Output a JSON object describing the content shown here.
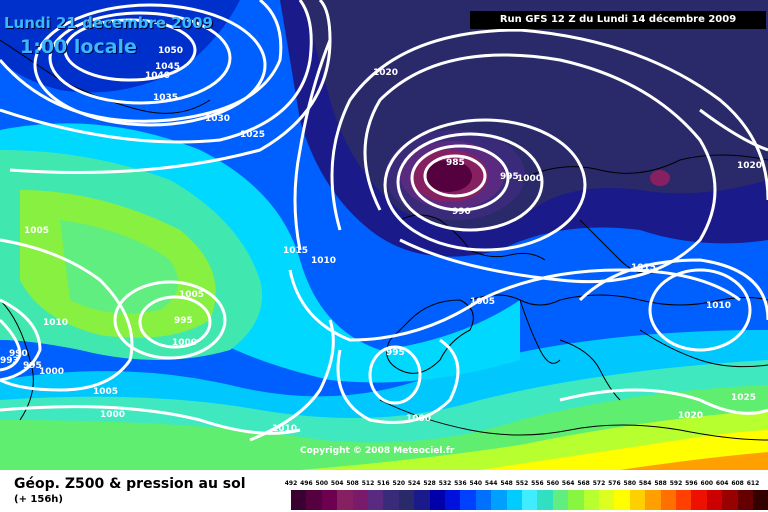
{
  "header": {
    "date": "Lundi 21 decembre 2009",
    "time": "1:00 locale",
    "run": "Run GFS 12 Z du Lundi 14 décembre 2009"
  },
  "copyright": "Copyright © 2008 Meteociel.fr",
  "footer": {
    "title": "Géop. Z500 & pression au sol",
    "subtitle": "(+ 156h)"
  },
  "legend": {
    "values": [
      "492",
      "496",
      "500",
      "504",
      "508",
      "512",
      "516",
      "520",
      "524",
      "528",
      "532",
      "536",
      "540",
      "544",
      "548",
      "552",
      "556",
      "560",
      "564",
      "568",
      "572",
      "576",
      "580",
      "584",
      "588",
      "592",
      "596",
      "600",
      "604",
      "608",
      "612"
    ],
    "colors": [
      "#3a0030",
      "#55003f",
      "#6e0050",
      "#872060",
      "#7a1a6a",
      "#5a2a80",
      "#3a2a7a",
      "#2a2a6a",
      "#1a1a8a",
      "#0000aa",
      "#0010dd",
      "#0040ff",
      "#0070ff",
      "#00a0ff",
      "#00ccff",
      "#40ecff",
      "#30e0c0",
      "#60ee80",
      "#88f540",
      "#b8ff30",
      "#ddff20",
      "#ffff00",
      "#ffd000",
      "#ffa000",
      "#ff7000",
      "#ff4000",
      "#ee1000",
      "#cc0000",
      "#990000",
      "#660000",
      "#330000"
    ]
  },
  "isobars": [
    "1050",
    "1045",
    "1040",
    "1035",
    "1030",
    "1025",
    "1020",
    "1015",
    "1010",
    "1005",
    "985",
    "990",
    "995",
    "1000",
    "1020",
    "1015",
    "1010",
    "1025",
    "1020",
    "1005",
    "1010",
    "1005",
    "995",
    "1000",
    "990",
    "993",
    "995",
    "1000",
    "1005",
    "1000",
    "1010",
    "995",
    "1000",
    "1005"
  ]
}
